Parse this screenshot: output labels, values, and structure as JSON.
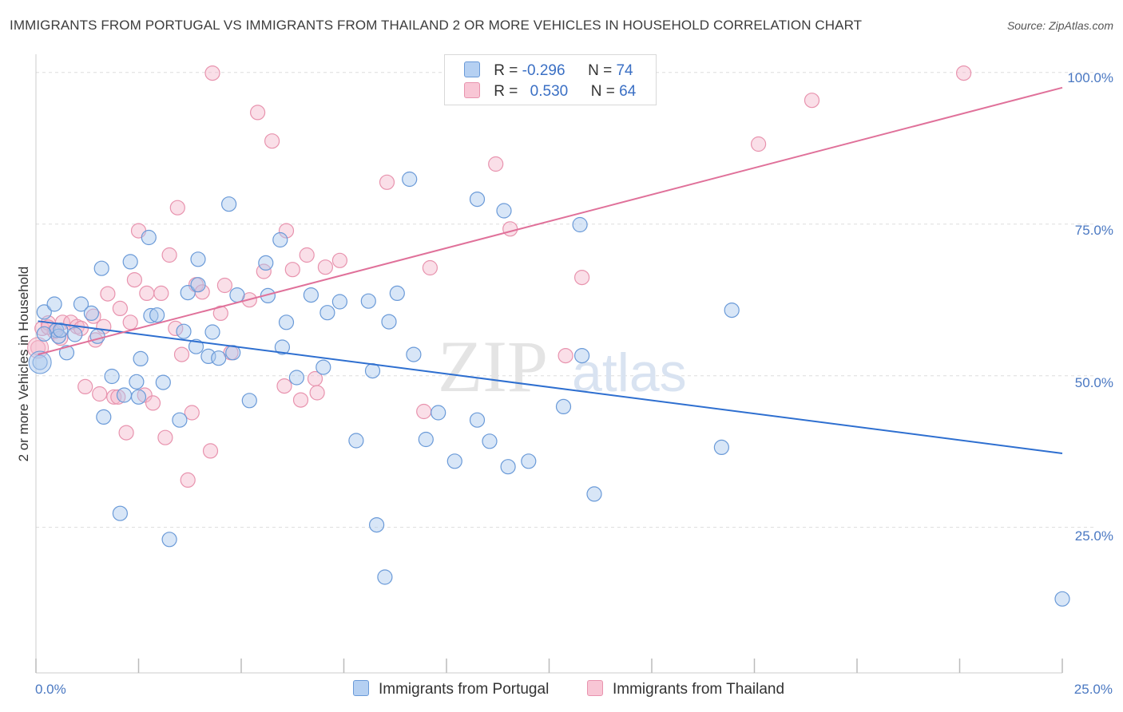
{
  "title": "IMMIGRANTS FROM PORTUGAL VS IMMIGRANTS FROM THAILAND 2 OR MORE VEHICLES IN HOUSEHOLD CORRELATION CHART",
  "source": "Source: ZipAtlas.com",
  "watermark": {
    "zip": "ZIP",
    "atlas": "atlas"
  },
  "legend_top": {
    "rows": [
      {
        "r_label": "R = ",
        "r_value": "-0.296",
        "n_label": "N = ",
        "n_value": "74"
      },
      {
        "r_label": "R = ",
        "r_value": "0.530",
        "n_label": "N = ",
        "n_value": "64"
      }
    ]
  },
  "legend_bottom": {
    "items": [
      {
        "label": "Immigrants from Portugal"
      },
      {
        "label": "Immigrants from Thailand"
      }
    ]
  },
  "colors": {
    "blue_fill": "#a9c8ee",
    "blue_stroke": "#6a9ad8",
    "blue_line": "#2e6fd0",
    "pink_fill": "#f5b9cb",
    "pink_stroke": "#e893ae",
    "pink_line": "#e0719a",
    "tick_text": "#4a78c2",
    "grid": "#dddddd"
  },
  "chart_data": {
    "type": "scatter",
    "title": "IMMIGRANTS FROM PORTUGAL VS IMMIGRANTS FROM THAILAND 2 OR MORE VEHICLES IN HOUSEHOLD CORRELATION CHART",
    "xlabel": "",
    "ylabel": "2 or more Vehicles in Household",
    "x_tick_labels": [
      "0.0%",
      "25.0%"
    ],
    "y_tick_labels": [
      "25.0%",
      "50.0%",
      "75.0%",
      "100.0%"
    ],
    "xlim": [
      0,
      25
    ],
    "ylim": [
      1,
      103
    ],
    "grid": true,
    "legend_position": "top-center",
    "series": [
      {
        "name": "Immigrants from Portugal",
        "color": "#6a9ad8",
        "r": -0.296,
        "n": 74,
        "trend": [
          [
            0.05,
            59.0
          ],
          [
            25.0,
            37.2
          ]
        ],
        "points": [
          [
            0.1,
            52.2
          ],
          [
            0.2,
            60.5
          ],
          [
            0.45,
            61.8
          ],
          [
            0.5,
            57.5
          ],
          [
            0.55,
            56.5
          ],
          [
            0.75,
            53.8
          ],
          [
            0.95,
            56.8
          ],
          [
            1.1,
            61.8
          ],
          [
            1.35,
            60.3
          ],
          [
            1.5,
            56.5
          ],
          [
            1.6,
            67.7
          ],
          [
            1.65,
            43.2
          ],
          [
            1.85,
            49.9
          ],
          [
            2.05,
            27.3
          ],
          [
            2.15,
            46.8
          ],
          [
            2.3,
            68.8
          ],
          [
            2.45,
            49.0
          ],
          [
            2.5,
            46.5
          ],
          [
            2.55,
            52.8
          ],
          [
            2.75,
            72.8
          ],
          [
            2.8,
            59.9
          ],
          [
            2.95,
            60.0
          ],
          [
            3.1,
            48.9
          ],
          [
            3.25,
            23.0
          ],
          [
            3.5,
            42.7
          ],
          [
            3.6,
            57.3
          ],
          [
            3.7,
            63.7
          ],
          [
            3.9,
            54.8
          ],
          [
            3.95,
            65.0
          ],
          [
            3.95,
            69.2
          ],
          [
            4.2,
            53.2
          ],
          [
            4.3,
            57.2
          ],
          [
            4.45,
            52.9
          ],
          [
            4.7,
            78.3
          ],
          [
            4.8,
            53.8
          ],
          [
            4.9,
            63.3
          ],
          [
            5.2,
            45.9
          ],
          [
            5.6,
            68.6
          ],
          [
            5.65,
            63.2
          ],
          [
            6.1,
            58.8
          ],
          [
            5.95,
            72.4
          ],
          [
            6.0,
            54.7
          ],
          [
            6.35,
            49.7
          ],
          [
            6.7,
            63.3
          ],
          [
            7.0,
            51.4
          ],
          [
            7.1,
            60.4
          ],
          [
            7.4,
            62.2
          ],
          [
            7.8,
            39.3
          ],
          [
            8.1,
            62.3
          ],
          [
            8.2,
            50.8
          ],
          [
            8.3,
            25.4
          ],
          [
            8.5,
            16.8
          ],
          [
            8.6,
            58.9
          ],
          [
            8.8,
            63.6
          ],
          [
            9.1,
            82.4
          ],
          [
            9.2,
            53.5
          ],
          [
            9.5,
            39.5
          ],
          [
            9.8,
            43.9
          ],
          [
            10.2,
            35.9
          ],
          [
            10.75,
            79.1
          ],
          [
            10.75,
            42.7
          ],
          [
            11.05,
            39.2
          ],
          [
            11.4,
            77.2
          ],
          [
            11.5,
            35.0
          ],
          [
            12.0,
            35.9
          ],
          [
            12.85,
            44.9
          ],
          [
            13.25,
            74.9
          ],
          [
            13.3,
            53.3
          ],
          [
            13.6,
            30.5
          ],
          [
            16.7,
            38.2
          ],
          [
            16.95,
            60.8
          ],
          [
            25.0,
            13.2
          ],
          [
            0.2,
            56.9
          ],
          [
            0.6,
            57.5
          ]
        ]
      },
      {
        "name": "Immigrants from Thailand",
        "color": "#e893ae",
        "r": 0.53,
        "n": 64,
        "trend": [
          [
            0.05,
            53.5
          ],
          [
            25.0,
            97.5
          ]
        ],
        "points": [
          [
            0.05,
            54.6
          ],
          [
            0.15,
            57.8
          ],
          [
            0.3,
            58.7
          ],
          [
            0.45,
            57.3
          ],
          [
            0.6,
            56.2
          ],
          [
            0.65,
            58.8
          ],
          [
            0.85,
            58.8
          ],
          [
            1.0,
            58.1
          ],
          [
            1.1,
            57.8
          ],
          [
            1.2,
            48.2
          ],
          [
            1.4,
            59.8
          ],
          [
            1.45,
            55.9
          ],
          [
            1.55,
            47.0
          ],
          [
            1.65,
            58.1
          ],
          [
            1.75,
            63.5
          ],
          [
            1.9,
            46.5
          ],
          [
            2.0,
            46.5
          ],
          [
            2.05,
            61.1
          ],
          [
            2.2,
            40.6
          ],
          [
            2.3,
            58.8
          ],
          [
            2.4,
            65.8
          ],
          [
            2.5,
            73.9
          ],
          [
            2.65,
            46.8
          ],
          [
            2.7,
            63.6
          ],
          [
            2.85,
            45.5
          ],
          [
            3.05,
            63.6
          ],
          [
            3.15,
            39.8
          ],
          [
            3.25,
            69.9
          ],
          [
            3.4,
            57.8
          ],
          [
            3.45,
            77.7
          ],
          [
            3.55,
            53.5
          ],
          [
            3.7,
            32.8
          ],
          [
            3.8,
            43.9
          ],
          [
            3.9,
            65.0
          ],
          [
            4.05,
            63.8
          ],
          [
            4.25,
            37.6
          ],
          [
            4.3,
            99.9
          ],
          [
            4.5,
            60.3
          ],
          [
            4.6,
            64.9
          ],
          [
            4.75,
            53.8
          ],
          [
            5.2,
            62.5
          ],
          [
            5.4,
            93.4
          ],
          [
            5.55,
            67.2
          ],
          [
            5.75,
            88.7
          ],
          [
            6.05,
            48.3
          ],
          [
            6.1,
            73.9
          ],
          [
            6.25,
            67.5
          ],
          [
            6.45,
            46.0
          ],
          [
            6.6,
            69.9
          ],
          [
            6.8,
            49.5
          ],
          [
            6.85,
            47.2
          ],
          [
            7.05,
            67.9
          ],
          [
            7.4,
            69.0
          ],
          [
            8.55,
            81.9
          ],
          [
            9.45,
            44.1
          ],
          [
            9.6,
            67.8
          ],
          [
            11.2,
            84.9
          ],
          [
            11.55,
            74.2
          ],
          [
            12.9,
            53.3
          ],
          [
            13.3,
            66.2
          ],
          [
            17.6,
            88.2
          ],
          [
            18.9,
            95.4
          ],
          [
            22.6,
            99.9
          ],
          [
            0.3,
            58.0
          ]
        ]
      }
    ]
  }
}
